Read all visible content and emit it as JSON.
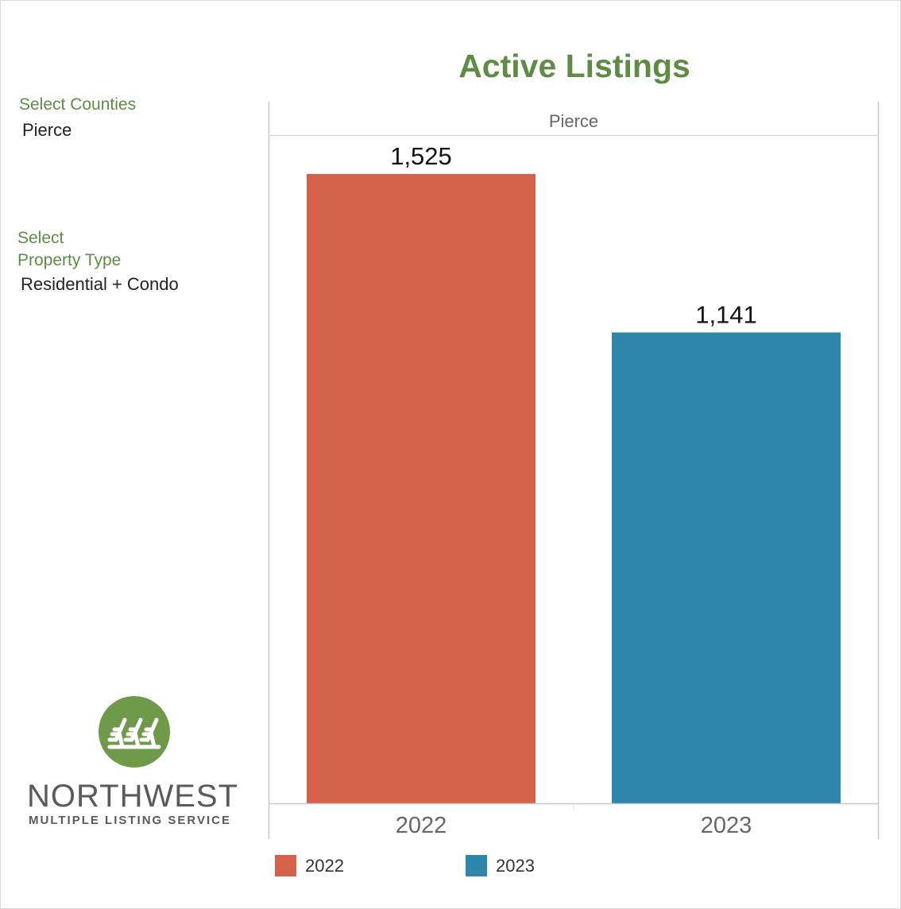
{
  "chart_data": {
    "type": "bar",
    "title": "Active Listings",
    "panel_label": "Pierce",
    "categories": [
      "2022",
      "2023"
    ],
    "values": [
      1525,
      1141
    ],
    "value_labels": [
      "1,525",
      "1,141"
    ],
    "colors": [
      "#d4624b",
      "#2e86ab"
    ],
    "ylim": [
      0,
      1600
    ],
    "grid": false,
    "legend": {
      "position": "bottom",
      "entries": [
        {
          "label": "2022",
          "color": "#d4624b"
        },
        {
          "label": "2023",
          "color": "#2e86ab"
        }
      ]
    }
  },
  "filters": {
    "county_label": "Select Counties",
    "county_value": "Pierce",
    "property_label_line1": "Select",
    "property_label_line2": "Property Type",
    "property_value": "Residential + Condo"
  },
  "logo": {
    "name_line1": "NORTHWEST",
    "name_line2": "MULTIPLE LISTING SERVICE",
    "icon": "trees-icon"
  }
}
